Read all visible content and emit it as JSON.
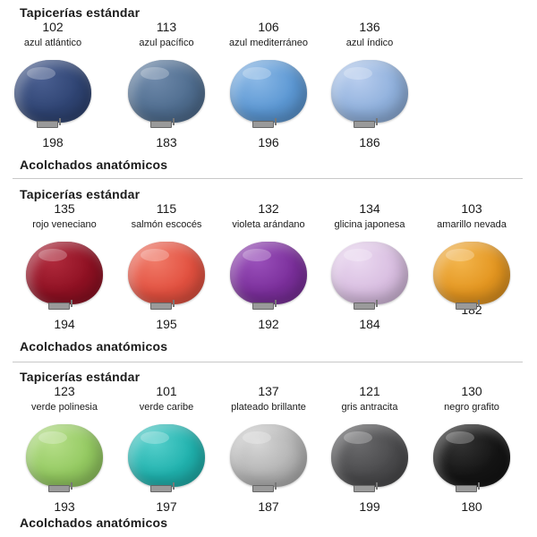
{
  "sections": [
    {
      "heading_top": "Tapicerías estándar",
      "heading_bottom": "Acolchados anatómicos",
      "swatches": [
        {
          "code": "102",
          "name": "azul atlántico",
          "anatomic_code": "198",
          "color": "#2f4473",
          "highlight": "#4a5f91"
        },
        {
          "code": "113",
          "name": "azul pacífico",
          "anatomic_code": "183",
          "color": "#4f6d8f",
          "highlight": "#6e89aa"
        },
        {
          "code": "106",
          "name": "azul mediterráneo",
          "anatomic_code": "196",
          "color": "#5b97d3",
          "highlight": "#8ab8e6"
        },
        {
          "code": "136",
          "name": "azul índico",
          "anatomic_code": "186",
          "color": "#8fb0dc",
          "highlight": "#b8cdee"
        }
      ]
    },
    {
      "heading_top": "Tapicerías estándar",
      "heading_bottom": "Acolchados anatómicos",
      "swatches": [
        {
          "code": "135",
          "name": "rojo veneciano",
          "anatomic_code": "194",
          "color": "#8e1022",
          "highlight": "#b02a3c"
        },
        {
          "code": "115",
          "name": "salmón escocés",
          "anatomic_code": "195",
          "color": "#e2503f",
          "highlight": "#f07a68"
        },
        {
          "code": "132",
          "name": "violeta arándano",
          "anatomic_code": "192",
          "color": "#7a2e9a",
          "highlight": "#9a50bb"
        },
        {
          "code": "134",
          "name": "glicina japonesa",
          "anatomic_code": "184",
          "color": "#d8bde0",
          "highlight": "#ead8f0"
        },
        {
          "code": "103",
          "name": "amarillo nevada",
          "anatomic_code": "182",
          "color": "#e3951f",
          "highlight": "#f3b54c"
        }
      ]
    },
    {
      "heading_top": "Tapicerías estándar",
      "heading_bottom": "Acolchados anatómicos",
      "swatches": [
        {
          "code": "123",
          "name": "verde polinesia",
          "anatomic_code": "193",
          "color": "#93c960",
          "highlight": "#b5de88"
        },
        {
          "code": "101",
          "name": "verde caribe",
          "anatomic_code": "197",
          "color": "#1fb1ad",
          "highlight": "#55cfcb"
        },
        {
          "code": "137",
          "name": "plateado brillante",
          "anatomic_code": "187",
          "color": "#b3b3b3",
          "highlight": "#d6d6d6"
        },
        {
          "code": "121",
          "name": "gris antracita",
          "anatomic_code": "199",
          "color": "#4a4a4c",
          "highlight": "#6a6a6c"
        },
        {
          "code": "130",
          "name": "negro grafito",
          "anatomic_code": "180",
          "color": "#141414",
          "highlight": "#333333"
        }
      ]
    }
  ]
}
